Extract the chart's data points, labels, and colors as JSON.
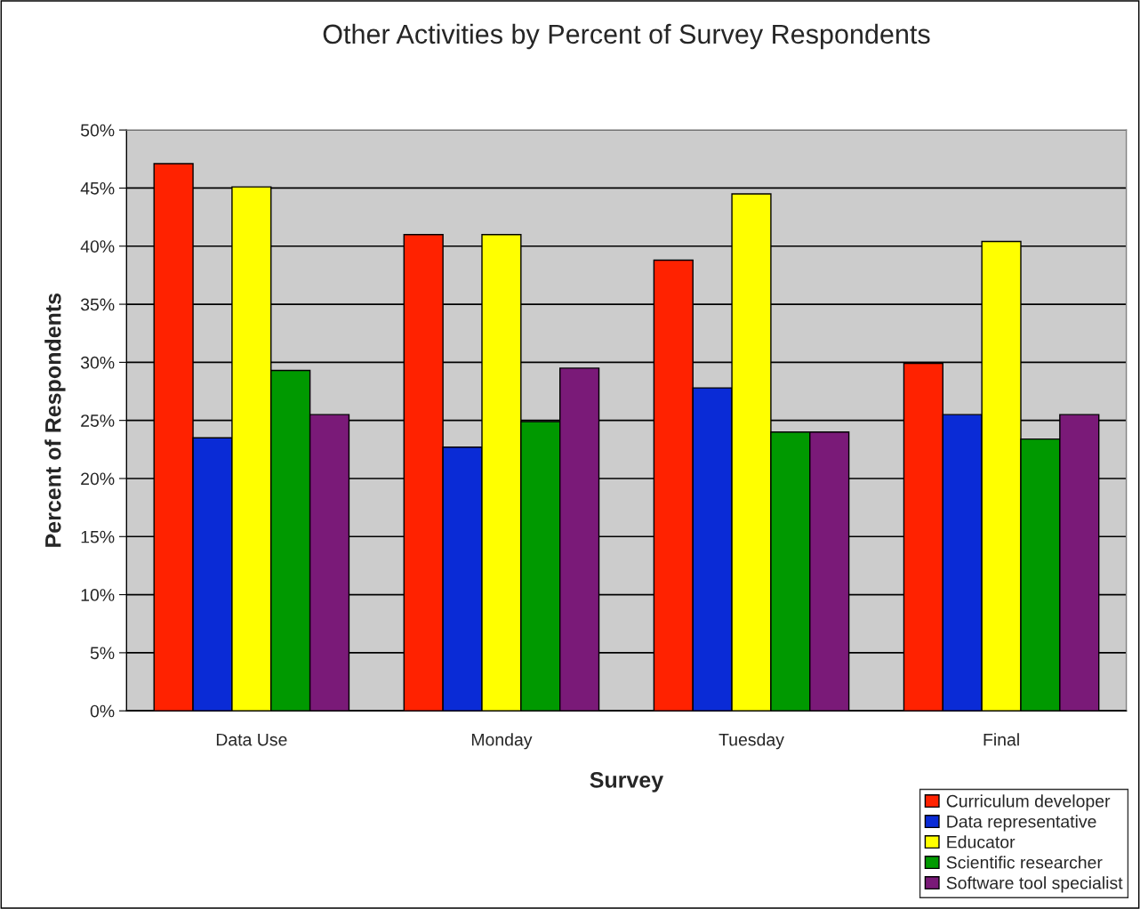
{
  "chart_data": {
    "type": "bar",
    "title": "Other Activities by Percent of Survey Respondents",
    "xlabel": "Survey",
    "ylabel": "Percent of Respondents",
    "categories": [
      "Data Use",
      "Monday",
      "Tuesday",
      "Final"
    ],
    "series": [
      {
        "name": "Curriculum developer",
        "color": "#ff2200",
        "values": [
          47.1,
          41.0,
          38.8,
          29.9
        ]
      },
      {
        "name": "Data representative",
        "color": "#0a2bd6",
        "values": [
          23.5,
          22.7,
          27.8,
          25.5
        ]
      },
      {
        "name": "Educator",
        "color": "#ffff00",
        "values": [
          45.1,
          41.0,
          44.5,
          40.4
        ]
      },
      {
        "name": "Scientific researcher",
        "color": "#009900",
        "values": [
          29.3,
          24.9,
          24.0,
          23.4
        ]
      },
      {
        "name": "Software tool specialist",
        "color": "#7a1a78",
        "values": [
          25.5,
          29.5,
          24.0,
          25.5
        ]
      }
    ],
    "ylim": [
      0,
      50
    ],
    "yticks": [
      {
        "value": 0,
        "label": "0%"
      },
      {
        "value": 5,
        "label": "5%"
      },
      {
        "value": 10,
        "label": "10%"
      },
      {
        "value": 15,
        "label": "15%"
      },
      {
        "value": 20,
        "label": "20%"
      },
      {
        "value": 25,
        "label": "25%"
      },
      {
        "value": 30,
        "label": "30%"
      },
      {
        "value": 35,
        "label": "35%"
      },
      {
        "value": 40,
        "label": "40%"
      },
      {
        "value": 45,
        "label": "45%"
      },
      {
        "value": 50,
        "label": "50%"
      }
    ],
    "grid": "y",
    "legend": "bottom right"
  }
}
